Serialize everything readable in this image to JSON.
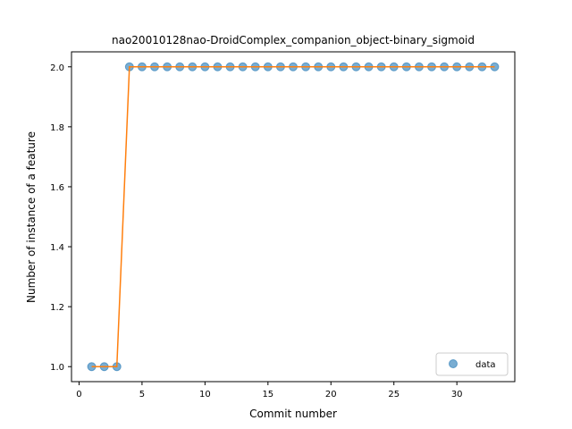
{
  "chart_data": {
    "type": "scatter",
    "title": "nao20010128nao-DroidComplex_companion_object-binary_sigmoid",
    "xlabel": "Commit number",
    "ylabel": "Number of instance of a feature",
    "xlim": [
      -0.6,
      34.6
    ],
    "ylim": [
      0.95,
      2.05
    ],
    "xticks": [
      0,
      5,
      10,
      15,
      20,
      25,
      30
    ],
    "yticks": [
      1.0,
      1.2,
      1.4,
      1.6,
      1.8,
      2.0
    ],
    "ytick_labels": [
      "1.0",
      "1.2",
      "1.4",
      "1.6",
      "1.8",
      "2.0"
    ],
    "grid": false,
    "legend_position": "lower-right",
    "series": [
      {
        "name": "data",
        "kind": "markers",
        "color": "#1f77b4",
        "x": [
          1,
          2,
          3,
          4,
          5,
          6,
          7,
          8,
          9,
          10,
          11,
          12,
          13,
          14,
          15,
          16,
          17,
          18,
          19,
          20,
          21,
          22,
          23,
          24,
          25,
          26,
          27,
          28,
          29,
          30,
          31,
          32,
          33
        ],
        "y": [
          1,
          1,
          1,
          2,
          2,
          2,
          2,
          2,
          2,
          2,
          2,
          2,
          2,
          2,
          2,
          2,
          2,
          2,
          2,
          2,
          2,
          2,
          2,
          2,
          2,
          2,
          2,
          2,
          2,
          2,
          2,
          2,
          2
        ]
      },
      {
        "kind": "line",
        "color": "#ff7f0e",
        "x": [
          1,
          2,
          3,
          4,
          5,
          6,
          7,
          8,
          9,
          10,
          11,
          12,
          13,
          14,
          15,
          16,
          17,
          18,
          19,
          20,
          21,
          22,
          23,
          24,
          25,
          26,
          27,
          28,
          29,
          30,
          31,
          32,
          33
        ],
        "y": [
          1,
          1,
          1,
          2,
          2,
          2,
          2,
          2,
          2,
          2,
          2,
          2,
          2,
          2,
          2,
          2,
          2,
          2,
          2,
          2,
          2,
          2,
          2,
          2,
          2,
          2,
          2,
          2,
          2,
          2,
          2,
          2,
          2
        ]
      }
    ]
  }
}
